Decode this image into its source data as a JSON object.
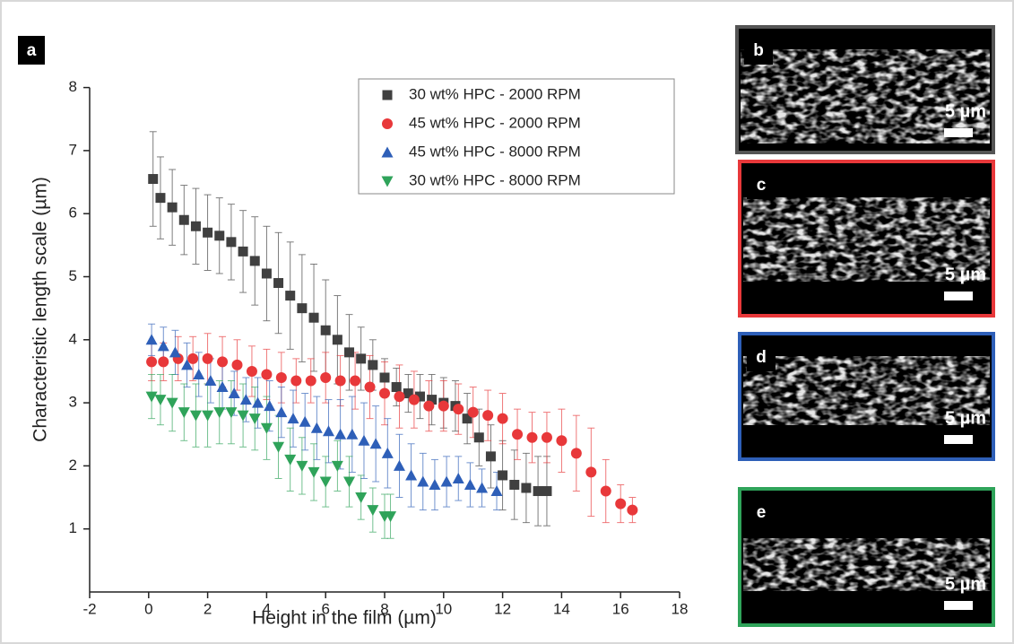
{
  "chart_data": {
    "type": "scatter",
    "panel_label": "a",
    "x_label": "Height in the film (µm)",
    "y_label": "Characteristic length scale (µm)",
    "xlim": [
      -2,
      18
    ],
    "xticks": [
      -2,
      0,
      2,
      4,
      6,
      8,
      10,
      12,
      14,
      16,
      18
    ],
    "ylim": [
      0,
      8
    ],
    "yticks": [
      1,
      2,
      3,
      4,
      5,
      6,
      7,
      8
    ],
    "series": [
      {
        "name": "30 wt% HPC - 2000 RPM",
        "color": "#404040",
        "marker": "square",
        "x": [
          0.15,
          0.4,
          0.8,
          1.2,
          1.6,
          2.0,
          2.4,
          2.8,
          3.2,
          3.6,
          4.0,
          4.4,
          4.8,
          5.2,
          5.6,
          6.0,
          6.4,
          6.8,
          7.2,
          7.6,
          8.0,
          8.4,
          8.8,
          9.2,
          9.6,
          10.0,
          10.4,
          10.8,
          11.2,
          11.6,
          12.0,
          12.4,
          12.8,
          13.2,
          13.5
        ],
        "values": [
          6.55,
          6.25,
          6.1,
          5.9,
          5.8,
          5.7,
          5.65,
          5.55,
          5.4,
          5.25,
          5.05,
          4.9,
          4.7,
          4.5,
          4.35,
          4.15,
          4.0,
          3.8,
          3.7,
          3.6,
          3.4,
          3.25,
          3.15,
          3.1,
          3.05,
          3.0,
          2.95,
          2.75,
          2.45,
          2.15,
          1.85,
          1.7,
          1.65,
          1.6,
          1.6
        ],
        "errors": [
          0.75,
          0.65,
          0.6,
          0.55,
          0.6,
          0.6,
          0.6,
          0.6,
          0.65,
          0.7,
          0.75,
          0.8,
          0.85,
          0.85,
          0.85,
          0.8,
          0.7,
          0.6,
          0.5,
          0.4,
          0.3,
          0.3,
          0.3,
          0.35,
          0.4,
          0.4,
          0.4,
          0.4,
          0.45,
          0.5,
          0.55,
          0.55,
          0.55,
          0.55,
          0.55
        ]
      },
      {
        "name": "45 wt% HPC - 2000 RPM",
        "color": "#e8383a",
        "marker": "circle",
        "x": [
          0.1,
          0.5,
          1.0,
          1.5,
          2.0,
          2.5,
          3.0,
          3.5,
          4.0,
          4.5,
          5.0,
          5.5,
          6.0,
          6.5,
          7.0,
          7.5,
          8.0,
          8.5,
          9.0,
          9.5,
          10.0,
          10.5,
          11.0,
          11.5,
          12.0,
          12.5,
          13.0,
          13.5,
          14.0,
          14.5,
          15.0,
          15.5,
          16.0,
          16.4
        ],
        "values": [
          3.65,
          3.65,
          3.7,
          3.7,
          3.7,
          3.65,
          3.6,
          3.5,
          3.45,
          3.4,
          3.35,
          3.35,
          3.4,
          3.35,
          3.35,
          3.25,
          3.15,
          3.1,
          3.05,
          2.95,
          2.95,
          2.9,
          2.85,
          2.8,
          2.75,
          2.5,
          2.45,
          2.45,
          2.4,
          2.2,
          1.9,
          1.6,
          1.4,
          1.3
        ],
        "errors": [
          0.3,
          0.3,
          0.35,
          0.35,
          0.4,
          0.4,
          0.4,
          0.4,
          0.4,
          0.4,
          0.35,
          0.35,
          0.4,
          0.4,
          0.45,
          0.5,
          0.5,
          0.5,
          0.45,
          0.4,
          0.4,
          0.4,
          0.4,
          0.4,
          0.4,
          0.4,
          0.4,
          0.4,
          0.5,
          0.6,
          0.7,
          0.5,
          0.3,
          0.2
        ]
      },
      {
        "name": "45 wt% HPC - 8000 RPM",
        "color": "#2e5fb8",
        "marker": "triangle-up",
        "x": [
          0.1,
          0.5,
          0.9,
          1.3,
          1.7,
          2.1,
          2.5,
          2.9,
          3.3,
          3.7,
          4.1,
          4.5,
          4.9,
          5.3,
          5.7,
          6.1,
          6.5,
          6.9,
          7.3,
          7.7,
          8.1,
          8.5,
          8.9,
          9.3,
          9.7,
          10.1,
          10.5,
          10.9,
          11.3,
          11.8
        ],
        "values": [
          4.0,
          3.9,
          3.8,
          3.6,
          3.45,
          3.35,
          3.25,
          3.15,
          3.05,
          3.0,
          2.95,
          2.85,
          2.75,
          2.7,
          2.6,
          2.55,
          2.5,
          2.5,
          2.4,
          2.35,
          2.2,
          2.0,
          1.85,
          1.75,
          1.7,
          1.75,
          1.8,
          1.7,
          1.65,
          1.6
        ],
        "errors": [
          0.25,
          0.3,
          0.35,
          0.35,
          0.35,
          0.35,
          0.35,
          0.35,
          0.35,
          0.4,
          0.4,
          0.4,
          0.45,
          0.45,
          0.5,
          0.5,
          0.55,
          0.6,
          0.6,
          0.6,
          0.55,
          0.5,
          0.5,
          0.45,
          0.4,
          0.4,
          0.35,
          0.35,
          0.3,
          0.3
        ]
      },
      {
        "name": "30 wt% HPC - 8000 RPM",
        "color": "#2fa35a",
        "marker": "triangle-down",
        "x": [
          0.1,
          0.4,
          0.8,
          1.2,
          1.6,
          2.0,
          2.4,
          2.8,
          3.2,
          3.6,
          4.0,
          4.4,
          4.8,
          5.2,
          5.6,
          6.0,
          6.4,
          6.8,
          7.2,
          7.6,
          8.0,
          8.2
        ],
        "values": [
          3.1,
          3.05,
          3.0,
          2.85,
          2.8,
          2.8,
          2.85,
          2.85,
          2.8,
          2.75,
          2.6,
          2.3,
          2.1,
          2.0,
          1.9,
          1.75,
          2.0,
          1.75,
          1.5,
          1.3,
          1.2,
          1.2
        ],
        "errors": [
          0.35,
          0.4,
          0.45,
          0.45,
          0.5,
          0.5,
          0.5,
          0.5,
          0.5,
          0.5,
          0.5,
          0.5,
          0.5,
          0.45,
          0.45,
          0.4,
          0.4,
          0.4,
          0.35,
          0.35,
          0.35,
          0.35
        ]
      }
    ]
  },
  "panels": [
    {
      "label": "b",
      "scale_bar": "5 µm",
      "border_color": "#555555"
    },
    {
      "label": "c",
      "scale_bar": "5 µm",
      "border_color": "#e8383a"
    },
    {
      "label": "d",
      "scale_bar": "5 µm",
      "border_color": "#2e5fb8"
    },
    {
      "label": "e",
      "scale_bar": "5 µm",
      "border_color": "#2fa35a"
    }
  ]
}
